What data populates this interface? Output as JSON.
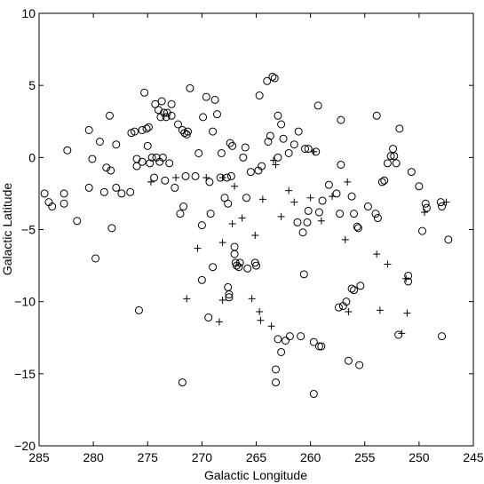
{
  "chart_data": {
    "type": "scatter",
    "xlabel": "Galactic Longitude",
    "ylabel": "Galactic Latitude",
    "xlim": [
      285,
      245
    ],
    "ylim": [
      -20,
      10
    ],
    "xticks": [
      285,
      280,
      275,
      270,
      265,
      260,
      255,
      250,
      245
    ],
    "yticks": [
      {
        "value": -20,
        "label": "−20"
      },
      {
        "value": -15,
        "label": "−15"
      },
      {
        "value": -10,
        "label": "−10"
      },
      {
        "value": -5,
        "label": "−5"
      },
      0,
      5,
      10
    ],
    "series": [
      {
        "marker": "circle",
        "color": "#000000",
        "x": [
          284.5,
          284.1,
          283.8,
          282.7,
          282.7,
          282.4,
          281.5,
          280.4,
          280.4,
          280.1,
          279.8,
          279.4,
          279.0,
          278.8,
          278.4,
          278.5,
          278.3,
          277.9,
          277.9,
          277.4,
          276.6,
          276.5,
          276.2,
          276.0,
          276.0,
          275.8,
          275.5,
          275.5,
          275.3,
          275.1,
          275.0,
          274.9,
          274.8,
          274.6,
          274.4,
          274.3,
          274.2,
          274.0,
          273.9,
          273.8,
          273.7,
          273.6,
          273.5,
          273.4,
          273.3,
          273.2,
          273.0,
          272.8,
          272.8,
          272.5,
          272.2,
          272.0,
          271.8,
          271.7,
          271.6,
          271.5,
          271.4,
          271.3,
          271.1,
          271.8,
          270.6,
          270.3,
          270.0,
          270.0,
          269.9,
          269.6,
          269.4,
          269.3,
          269.2,
          269.0,
          269.0,
          268.8,
          268.6,
          268.3,
          268.2,
          267.9,
          267.7,
          267.6,
          267.6,
          267.5,
          267.5,
          267.4,
          267.3,
          267.2,
          267.0,
          267.0,
          266.9,
          266.8,
          266.6,
          266.5,
          266.2,
          266.0,
          265.9,
          265.8,
          265.5,
          265.1,
          265.0,
          264.8,
          264.7,
          264.5,
          264.0,
          263.9,
          263.7,
          263.5,
          263.3,
          263.0,
          263.0,
          262.7,
          262.7,
          263.0,
          263.2,
          263.2,
          262.5,
          262.3,
          261.9,
          262.0,
          261.5,
          261.2,
          261.1,
          260.9,
          260.7,
          260.6,
          260.5,
          260.3,
          260.2,
          260.2,
          259.7,
          259.7,
          259.5,
          259.3,
          259.2,
          259.0,
          259.2,
          258.9,
          258.3,
          257.6,
          257.3,
          257.2,
          257.2,
          257.4,
          257.0,
          256.7,
          256.2,
          256.0,
          256.5,
          255.5,
          255.4,
          256.2,
          256.0,
          255.7,
          255.6,
          254.7,
          254.0,
          253.8,
          253.9,
          253.4,
          253.2,
          252.9,
          252.6,
          252.4,
          252.3,
          252.1,
          251.8,
          251.9,
          251.0,
          251.0,
          250.7,
          250.0,
          249.7,
          249.4,
          249.3,
          248.0,
          247.9,
          247.9,
          247.3
        ],
        "y": [
          -2.5,
          -3.1,
          -3.4,
          -2.5,
          -3.2,
          0.5,
          -4.4,
          -2.1,
          1.9,
          -0.1,
          -7.0,
          1.1,
          -2.4,
          -0.7,
          -0.9,
          2.9,
          -4.9,
          -2.1,
          0.9,
          -2.5,
          -2.4,
          1.7,
          1.8,
          -0.1,
          -0.6,
          -10.6,
          -0.3,
          1.9,
          4.5,
          2.0,
          0.8,
          2.1,
          -0.4,
          0.0,
          -1.4,
          3.7,
          0.0,
          3.3,
          -0.3,
          2.8,
          3.9,
          0.0,
          3.1,
          -1.6,
          2.8,
          3.1,
          -0.4,
          2.9,
          3.7,
          -2.1,
          2.3,
          -3.9,
          1.9,
          -3.4,
          1.7,
          -1.3,
          1.6,
          1.8,
          4.8,
          -15.6,
          -1.3,
          0.3,
          -4.7,
          -8.5,
          2.8,
          4.2,
          -11.1,
          -1.7,
          -3.9,
          1.8,
          -7.6,
          4.0,
          3.0,
          -1.4,
          0.3,
          -2.8,
          -1.4,
          -3.2,
          -9.0,
          -9.5,
          -9.7,
          1.0,
          -1.3,
          0.8,
          -6.2,
          -6.7,
          -7.3,
          -7.5,
          -7.6,
          -7.3,
          0.0,
          0.7,
          -2.8,
          -7.7,
          -1.0,
          -7.3,
          -7.5,
          -0.9,
          4.3,
          -0.6,
          5.3,
          1.1,
          1.5,
          5.6,
          5.5,
          0.0,
          2.9,
          2.3,
          -13.5,
          -12.6,
          -15.6,
          -14.7,
          1.3,
          -12.7,
          -12.4,
          0.3,
          0.9,
          -4.5,
          1.8,
          -12.4,
          -5.2,
          -8.1,
          0.6,
          -4.5,
          -3.7,
          0.6,
          -16.4,
          -12.8,
          0.4,
          3.6,
          -13.1,
          -13.1,
          -3.8,
          -3.0,
          -1.9,
          -2.5,
          -3.9,
          -0.5,
          2.6,
          -10.4,
          -10.3,
          -10.0,
          -9.1,
          -9.2,
          -14.1,
          -14.4,
          -8.9,
          -2.7,
          -3.9,
          -4.8,
          -4.9,
          -3.4,
          -3.9,
          -4.2,
          2.9,
          -1.7,
          -1.6,
          -0.4,
          0.1,
          0.6,
          0.1,
          -0.4,
          2.0,
          -12.3,
          -8.6,
          -8.2,
          -1.0,
          -2.0,
          -5.1,
          -3.2,
          -3.5,
          -3.1,
          -3.4,
          -12.4,
          -5.7
        ]
      },
      {
        "marker": "plus",
        "color": "#000000",
        "x": [
          274.7,
          272.4,
          269.6,
          268.1,
          267.0,
          268.1,
          270.4,
          271.4,
          268.4,
          268.1,
          267.2,
          266.3,
          265.1,
          265.4,
          264.7,
          264.6,
          264.4,
          263.6,
          263.2,
          262.7,
          262.0,
          261.5,
          260.0,
          259.0,
          258.0,
          256.8,
          256.6,
          256.5,
          253.9,
          253.6,
          252.9,
          251.6,
          251.1,
          251.2,
          249.5,
          247.5,
          259.7,
          263.4
        ],
        "y": [
          -1.7,
          -1.4,
          -1.4,
          -1.4,
          -2.0,
          -5.9,
          -6.3,
          -9.8,
          -11.4,
          -9.9,
          -4.6,
          -4.2,
          -5.4,
          -9.8,
          -10.7,
          -11.3,
          -2.9,
          -11.7,
          -0.5,
          -4.1,
          -2.3,
          -3.1,
          -2.8,
          -4.4,
          -2.7,
          -5.7,
          -1.7,
          -10.7,
          -6.7,
          -10.6,
          -7.4,
          -12.2,
          -10.8,
          -8.4,
          -3.8,
          -3.1,
          0.4,
          -0.2
        ]
      }
    ]
  }
}
